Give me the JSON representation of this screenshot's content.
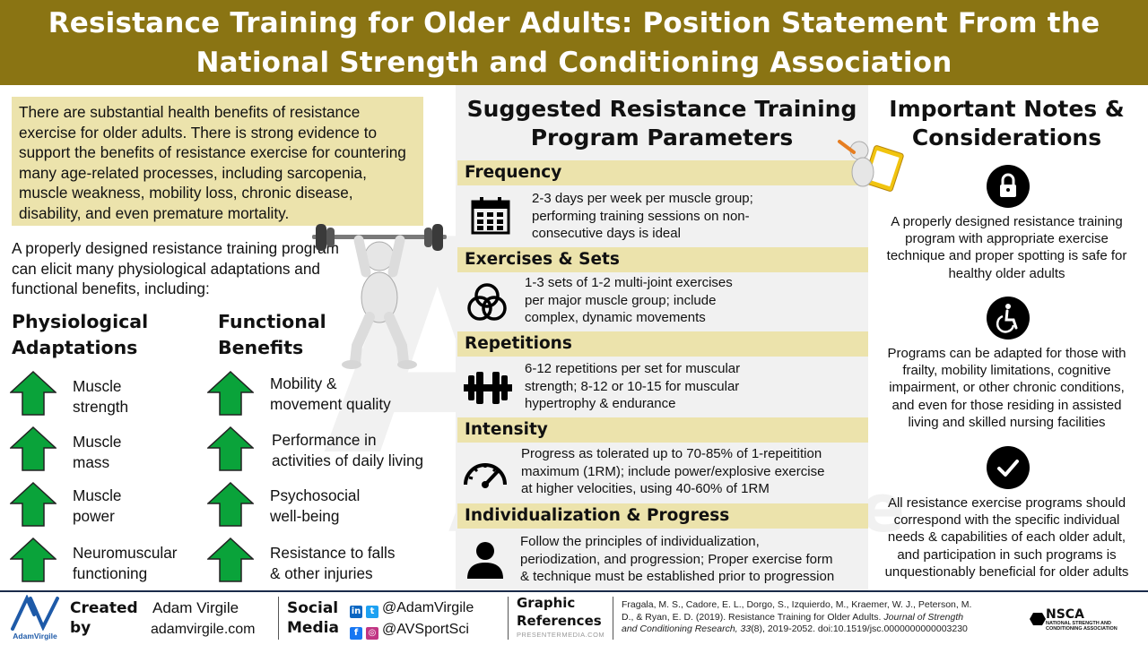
{
  "header": {
    "title_line1": "Resistance Training for Older Adults: Position Statement From the",
    "title_line2": "National Strength and Conditioning Association"
  },
  "watermark": {
    "mark": "AV",
    "name": "AdamVirgile"
  },
  "left": {
    "intro": "There are substantial health benefits of resistance exercise for older adults. There is strong evidence to support the benefits of resistance exercise for countering many age-related processes, including sarcopenia, muscle weakness, mobility loss, chronic disease, disability, and even premature mortality.",
    "lead": "A properly designed resistance training program can elicit many physiological adaptations and functional benefits, including:",
    "physiological_heading": {
      "line1": "Physiological",
      "line2": "Adaptations"
    },
    "functional_heading": {
      "line1": "Functional",
      "line2": "Benefits"
    },
    "physiological": [
      {
        "line1": "Muscle",
        "line2": "strength"
      },
      {
        "line1": "Muscle",
        "line2": "mass"
      },
      {
        "line1": "Muscle",
        "line2": "power"
      },
      {
        "line1": "Neuromuscular",
        "line2": "functioning"
      }
    ],
    "functional": [
      {
        "line1": "Mobility &",
        "line2": "movement quality"
      },
      {
        "line1": "Performance in",
        "line2": "activities of daily living"
      },
      {
        "line1": "Psychosocial",
        "line2": "well-being"
      },
      {
        "line1": "Resistance to falls",
        "line2": "& other injuries"
      }
    ],
    "arrow_color": "#0aa33a"
  },
  "middle": {
    "title_line1": "Suggested Resistance Training",
    "title_line2": "Program Parameters",
    "params": [
      {
        "heading": "Frequency",
        "icon": "calendar-icon",
        "lines": [
          "2-3 days per week per muscle group;",
          "performing training sessions on non-",
          "consecutive days is ideal"
        ]
      },
      {
        "heading": "Exercises & Sets",
        "icon": "venn-circles-icon",
        "lines": [
          "1-3 sets of 1-2 multi-joint exercises",
          "per major muscle group; include",
          "complex, dynamic movements"
        ]
      },
      {
        "heading": "Repetitions",
        "icon": "dumbbell-icon",
        "lines": [
          "6-12 repetitions per set for muscular",
          "strength;  8-12 or 10-15 for muscular",
          "hypertrophy  & endurance"
        ]
      },
      {
        "heading": "Intensity",
        "icon": "speedometer-icon",
        "lines": [
          "Progress as tolerated up to 70-85% of 1-repeitition",
          "maximum (1RM); include power/explosive exercise",
          "at higher velocities, using 40-60% of 1RM"
        ]
      },
      {
        "heading": "Individualization  & Progress",
        "icon": "person-icon",
        "lines": [
          "Follow the principles of individualization,",
          "periodization, and progression; Proper exercise form",
          "& technique  must be established prior to progression"
        ]
      }
    ],
    "accent_color": "#ece3ac"
  },
  "right": {
    "title_line1": "Important Notes &",
    "title_line2": "Considerations",
    "notes": [
      {
        "icon": "lock-icon",
        "lines": [
          "A properly designed resistance training",
          "program with appropriate exercise",
          "technique and proper spotting is safe for",
          "healthy  older adults"
        ]
      },
      {
        "icon": "wheelchair-icon",
        "lines": [
          "Programs can be adapted for those with",
          "frailty, mobility limitations, cognitive",
          "impairment, or other chronic conditions,",
          "and even for those residing in assisted",
          "living and skilled nursing facilities"
        ]
      },
      {
        "icon": "checkmark-icon",
        "lines": [
          "All resistance exercise programs should",
          "correspond with the specific individual",
          "needs & capabilities of each older adult,",
          "and participation in such programs is",
          "unquestionably  beneficial for older adults"
        ]
      }
    ]
  },
  "footer": {
    "logo_text": "AdamVirgile",
    "created_line1": "Created",
    "created_line2": "by",
    "author": "Adam Virgile",
    "website": "adamvirgile.com",
    "social_line1": "Social",
    "social_line2": "Media",
    "handle1": "@AdamVirgile",
    "handle2": "@AVSportSci",
    "graphic_line1": "Graphic",
    "graphic_line2": "References",
    "graphic_source": "PRESENTERMEDIA.COM",
    "citation_line1": "Fragala, M. S., Cadore, E. L., Dorgo, S., Izquierdo, M., Kraemer, W. J., Peterson, M.",
    "citation_line2": "D., & Ryan, E. D. (2019). Resistance Training for Older Adults.",
    "citation_journal": "Journal of Strength",
    "citation_line3_journal": "and Conditioning Research, 33",
    "citation_line3_rest": "(8), 2019-2052. doi:10.1519/jsc.0000000000003230",
    "nsca_mark": "NSCA",
    "nsca_line1": "NATIONAL STRENGTH AND",
    "nsca_line2": "CONDITIONING ASSOCIATION"
  }
}
